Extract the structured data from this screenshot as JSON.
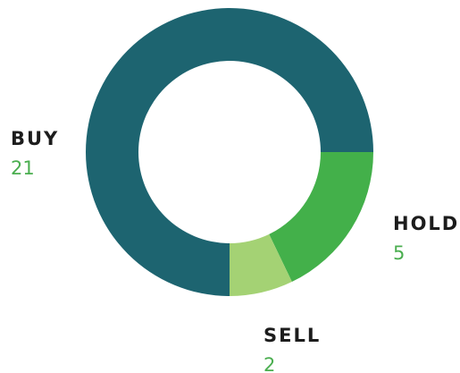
{
  "chart_data": {
    "type": "pie",
    "donut": true,
    "categories": [
      "BUY",
      "HOLD",
      "SELL"
    ],
    "values": [
      21,
      5,
      2
    ],
    "colors": [
      "#1d6470",
      "#43b04a",
      "#a4d274"
    ]
  }
}
